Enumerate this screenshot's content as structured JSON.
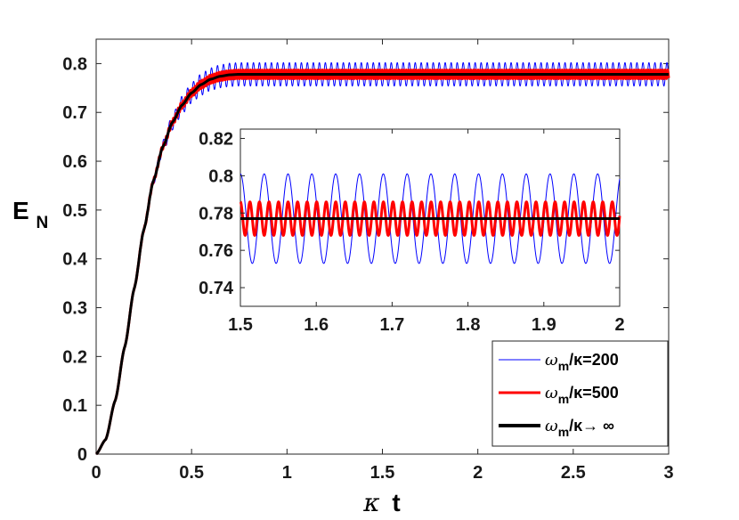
{
  "chart_data": [
    {
      "type": "line",
      "role": "main",
      "xlim": [
        0,
        3
      ],
      "ylim": [
        0,
        0.85
      ],
      "xticks": [
        "0",
        "0.5",
        "1",
        "1.5",
        "2",
        "2.5",
        "3"
      ],
      "yticks": [
        "0",
        "0.1",
        "0.2",
        "0.3",
        "0.4",
        "0.5",
        "0.6",
        "0.7",
        "0.8"
      ],
      "xlabel": {
        "symbol": "κ",
        "text": "t"
      },
      "ylabel": {
        "main": "E",
        "sub": "N"
      },
      "steady_value": 0.778,
      "series": [
        {
          "name": "ω_m/κ=200",
          "color": "#0000ff",
          "width": 1,
          "osc_amplitude": 0.024,
          "osc_period": 0.0314
        },
        {
          "name": "ω_m/κ=500",
          "color": "#ff0000",
          "width": 3,
          "osc_amplitude": 0.009,
          "osc_period": 0.01257
        },
        {
          "name": "ω_m/κ→∞",
          "color": "#000000",
          "width": 3,
          "osc_amplitude": 0,
          "osc_period": 0
        }
      ],
      "curve_points": {
        "t": [
          0,
          0.05,
          0.1,
          0.15,
          0.2,
          0.25,
          0.3,
          0.35,
          0.4,
          0.45,
          0.5,
          0.55,
          0.6,
          0.65,
          0.7,
          0.75,
          0.8,
          0.9,
          1.0,
          1.5,
          2.0,
          2.5,
          3.0
        ],
        "E": [
          0,
          0.03,
          0.11,
          0.22,
          0.34,
          0.46,
          0.56,
          0.63,
          0.68,
          0.715,
          0.74,
          0.757,
          0.768,
          0.774,
          0.777,
          0.778,
          0.778,
          0.778,
          0.778,
          0.778,
          0.778,
          0.778,
          0.778
        ]
      },
      "legend": {
        "placement": "bottom-right",
        "entries": [
          {
            "sym": "ω",
            "sub": "m",
            "rest": "/κ=200",
            "color": "#0000ff",
            "width": 1
          },
          {
            "sym": "ω",
            "sub": "m",
            "rest": "/κ=500",
            "color": "#ff0000",
            "width": 3
          },
          {
            "sym": "ω",
            "sub": "m",
            "rest": "/κ→ ∞",
            "color": "#000000",
            "width": 4
          }
        ]
      }
    },
    {
      "type": "line",
      "role": "inset",
      "xlim": [
        1.5,
        2.0
      ],
      "ylim": [
        0.73,
        0.825
      ],
      "xticks": [
        "1.5",
        "1.6",
        "1.7",
        "1.8",
        "1.9",
        "2"
      ],
      "yticks": [
        "0.74",
        "0.76",
        "0.78",
        "0.8",
        "0.82"
      ],
      "series": [
        {
          "name": "ω_m/κ=200",
          "color": "#0000ff",
          "width": 1,
          "center": 0.777,
          "amplitude": 0.024,
          "period": 0.0314
        },
        {
          "name": "ω_m/κ=500",
          "color": "#ff0000",
          "width": 3,
          "center": 0.777,
          "amplitude": 0.009,
          "period": 0.01257
        },
        {
          "name": "ω_m/κ→∞",
          "color": "#000000",
          "width": 3,
          "center": 0.777,
          "amplitude": 0,
          "period": 0
        }
      ]
    }
  ]
}
